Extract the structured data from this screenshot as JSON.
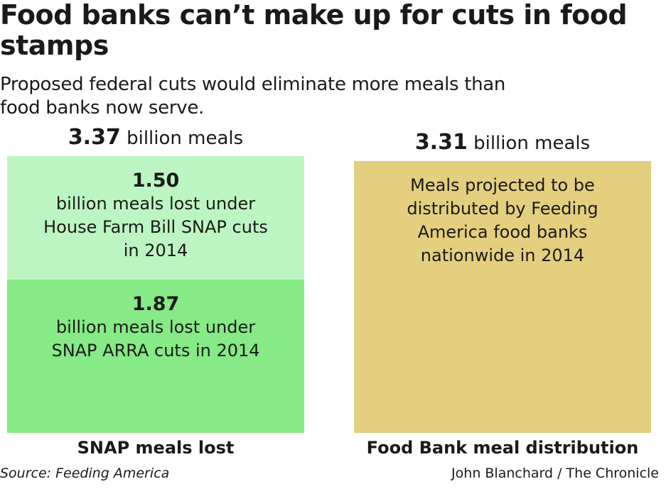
{
  "title": "Food banks can’t make up for cuts in food stamps",
  "subtitle": "Proposed federal cuts would eliminate more meals than food banks now serve.",
  "source": "Source: Feeding America",
  "credit": "John Blanchard / The Chronicle",
  "chart_data": {
    "type": "bar",
    "unit": "billion meals",
    "categories": [
      "SNAP meals lost",
      "Food Bank meal distribution"
    ],
    "totals": [
      3.37,
      3.31
    ],
    "series": [
      {
        "category": "SNAP meals lost",
        "value": 1.87,
        "label": "billion meals lost under SNAP ARRA cuts in 2014",
        "color": "#86ea86"
      },
      {
        "category": "SNAP meals lost",
        "value": 1.5,
        "label": "billion meals lost under House Farm Bill SNAP cuts in 2014",
        "color": "#bdf5c2"
      },
      {
        "category": "Food Bank meal distribution",
        "value": 3.31,
        "label": "Meals projected to be distributed by Feeding America food banks nationwide in 2014",
        "color": "#e3cf7e"
      }
    ]
  }
}
